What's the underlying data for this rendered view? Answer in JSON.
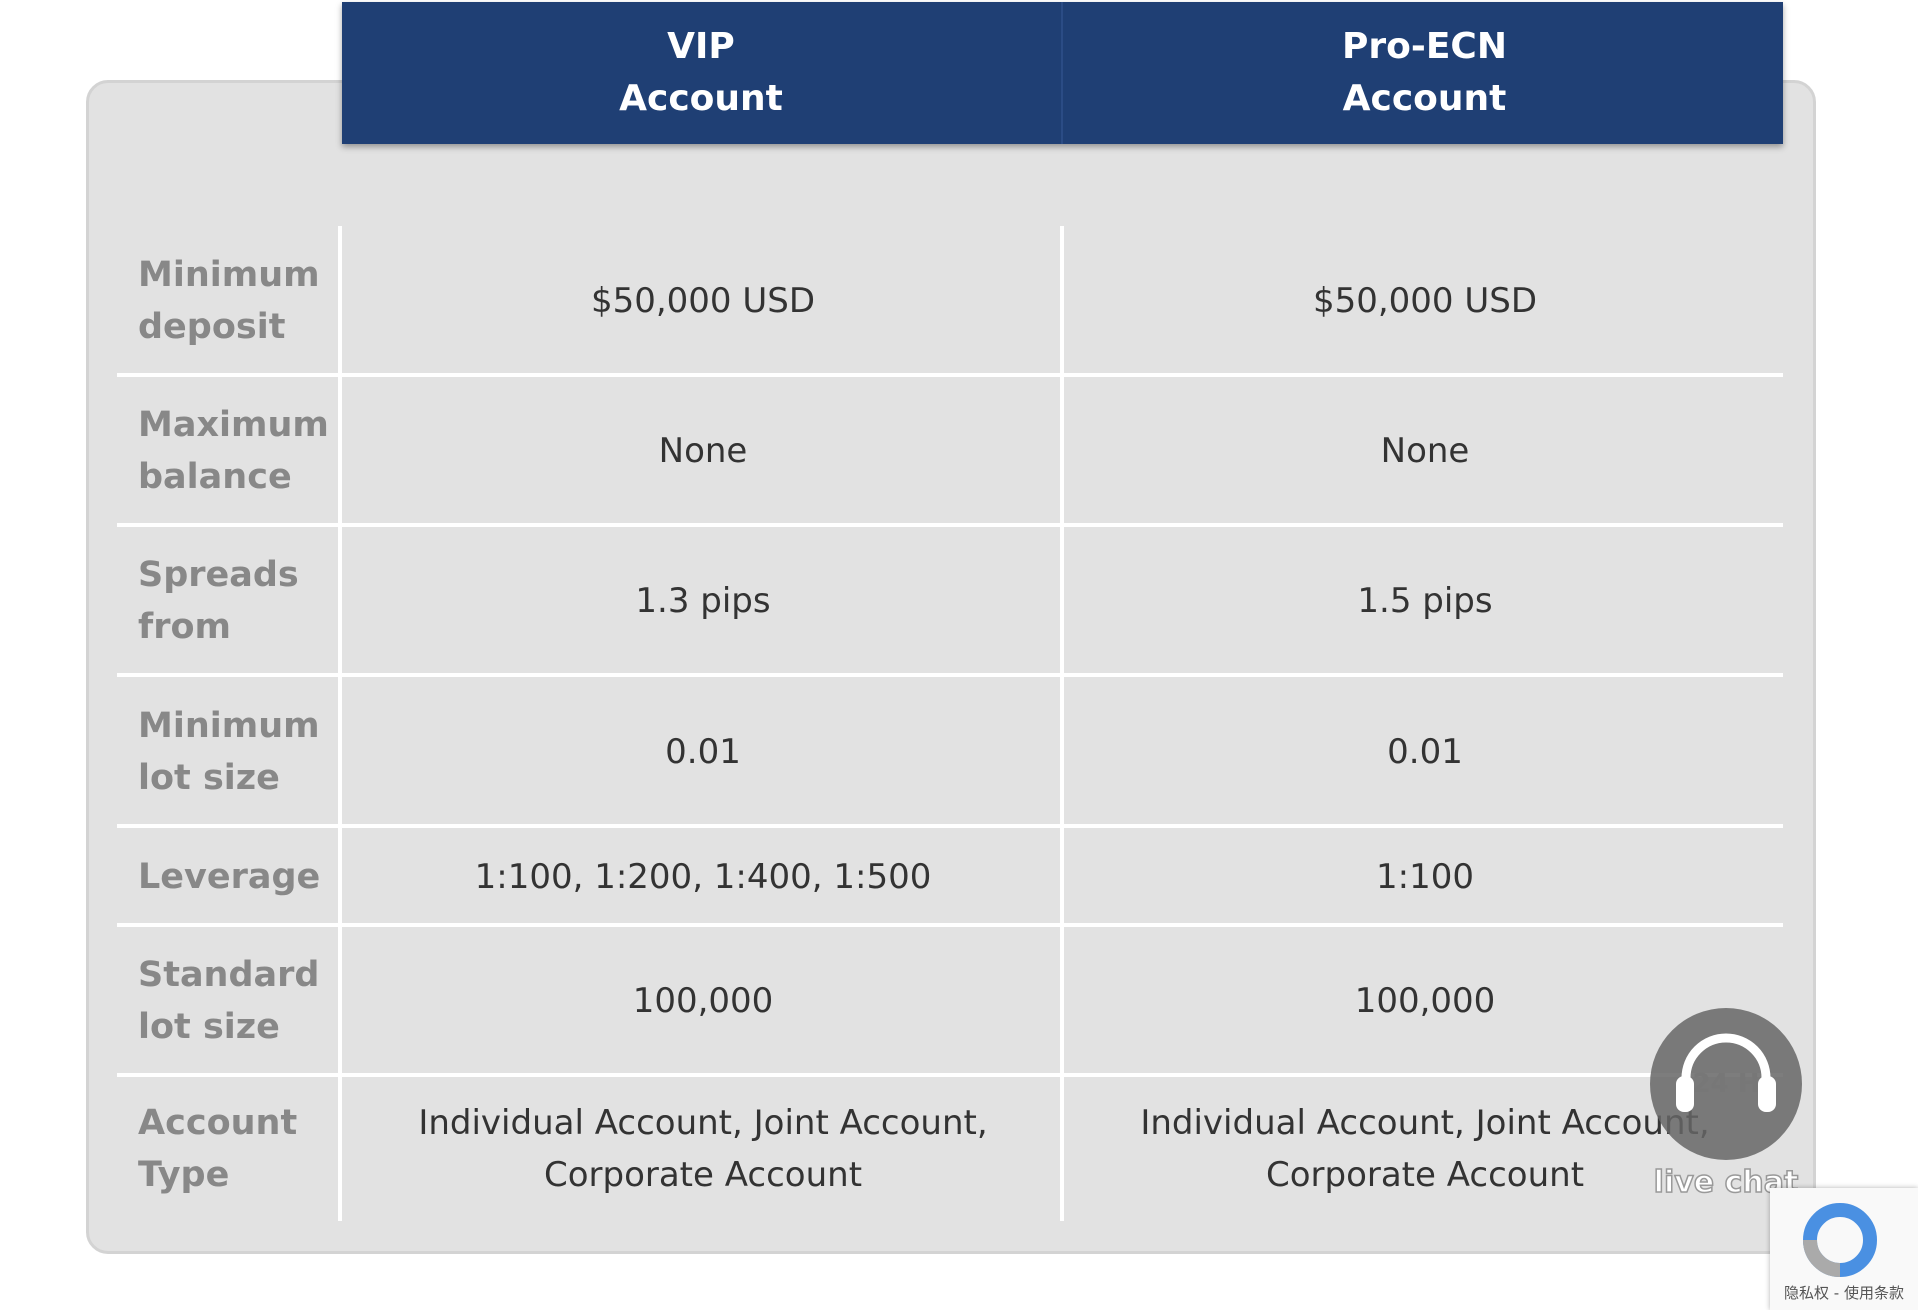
{
  "header": {
    "columns": [
      "VIP Account",
      "Pro-ECN Account"
    ]
  },
  "table": {
    "rows": [
      [
        "Minimum deposit",
        "$50,000 USD",
        "$50,000 USD"
      ],
      [
        "Maximum balance",
        "None",
        "None"
      ],
      [
        "Spreads from",
        "1.3 pips",
        "1.5 pips"
      ],
      [
        "Minimum lot size",
        "0.01",
        "0.01"
      ],
      [
        "Leverage",
        "1:100, 1:200, 1:400, 1:500",
        "1:100"
      ],
      [
        "Standard lot size",
        "100,000",
        "100,000"
      ],
      [
        "Account Type",
        "Individual Account, Joint Account, Corporate Account",
        "Individual Account, Joint Account, Corporate Account"
      ]
    ]
  },
  "widget": {
    "badge": "24 H",
    "label": "live chat"
  },
  "recaptcha": {
    "links": "隐私权 - 使用条款"
  }
}
